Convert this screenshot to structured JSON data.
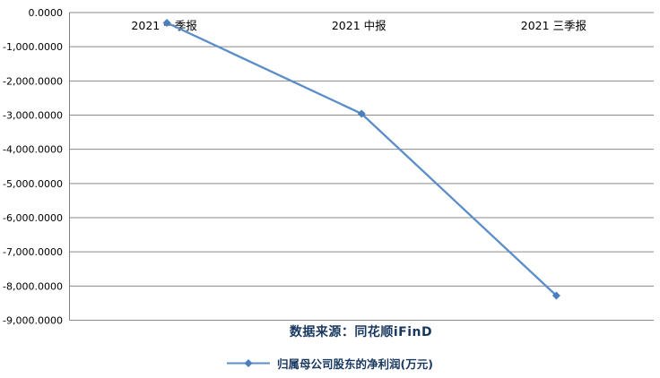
{
  "chart": {
    "source_label": "数据来源：同花顺iFinD",
    "legend": {
      "label": "归属母公司股东的净利润(万元)",
      "marker": "line-with-diamond"
    },
    "colors": {
      "line": "#5B8DC9",
      "marker": "#4A7EBC",
      "gridline": "#8A8A8A",
      "axis": "#7F7F7F",
      "tick_text": "#000000",
      "heading_text": "#17375E"
    }
  },
  "chart_data": {
    "type": "line",
    "title": "",
    "xlabel": "",
    "ylabel": "",
    "categories": [
      "2021 一季报",
      "2021 中报",
      "2021 三季报"
    ],
    "series": [
      {
        "name": "归属母公司股东的净利润(万元)",
        "values": [
          -300,
          -2960,
          -8280
        ]
      }
    ],
    "ylim": [
      -9000,
      0
    ],
    "y_tick_interval": 1000,
    "y_tick_labels": [
      "0.0000",
      "-1,000.0000",
      "-2,000.0000",
      "-3,000.0000",
      "-4,000.0000",
      "-5,000.0000",
      "-6,000.0000",
      "-7,000.0000",
      "-8,000.0000",
      "-9,000.0000"
    ],
    "grid": true,
    "x_labels_position": "top-inside",
    "legend_position": "bottom",
    "marker_shape": "diamond"
  }
}
